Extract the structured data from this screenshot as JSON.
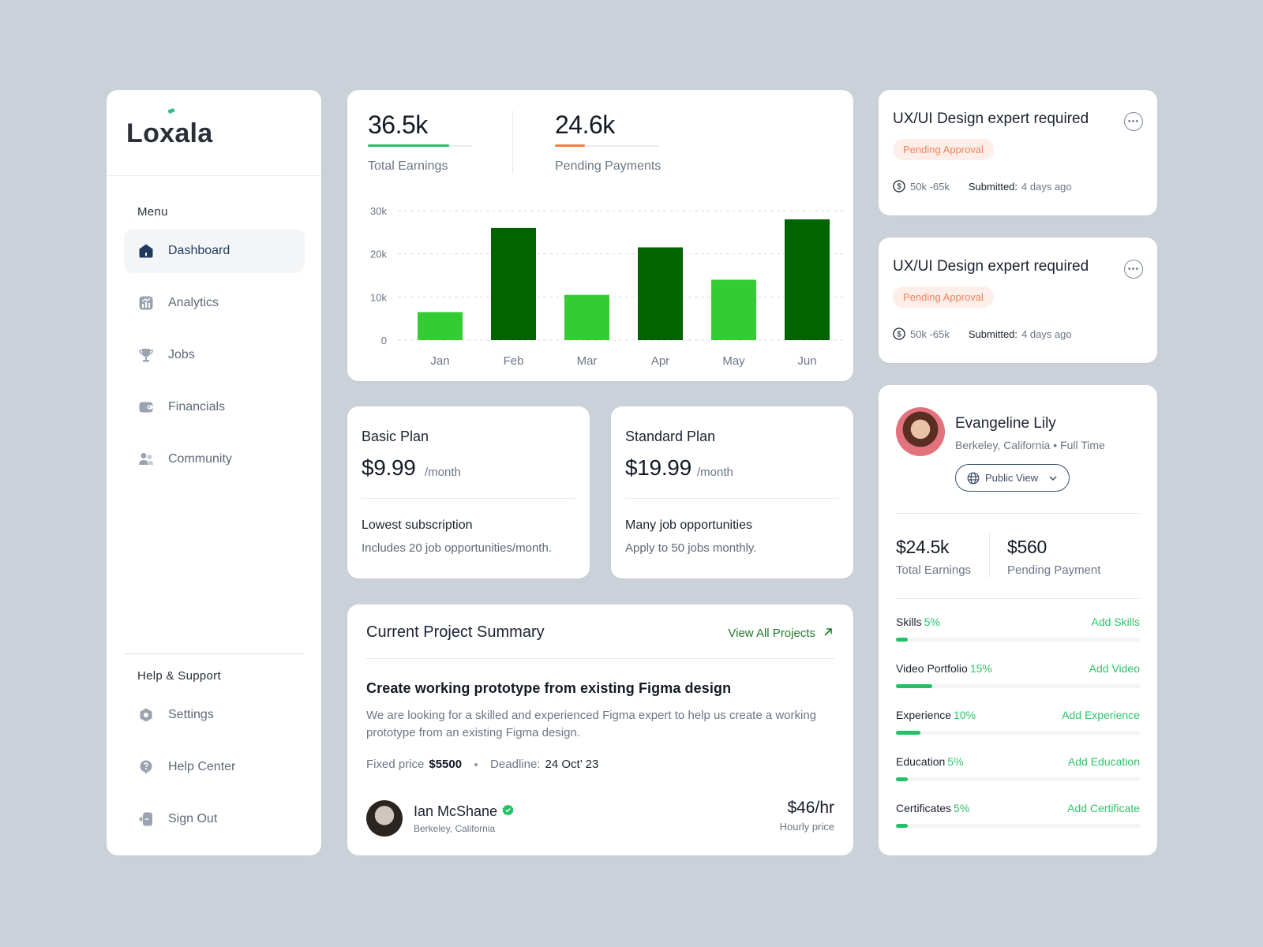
{
  "sidebar": {
    "logo": "Loxala",
    "menu_label": "Menu",
    "items": [
      {
        "label": "Dashboard",
        "icon": "home-icon",
        "active": true
      },
      {
        "label": "Analytics",
        "icon": "analytics-icon"
      },
      {
        "label": "Jobs",
        "icon": "trophy-icon"
      },
      {
        "label": "Financials",
        "icon": "wallet-icon"
      },
      {
        "label": "Community",
        "icon": "users-icon"
      }
    ],
    "support_label": "Help & Support",
    "support_items": [
      {
        "label": "Settings",
        "icon": "settings-icon"
      },
      {
        "label": "Help Center",
        "icon": "help-icon"
      },
      {
        "label": "Sign Out",
        "icon": "sign-out-icon"
      }
    ]
  },
  "stats": {
    "total_earnings": {
      "value": "36.5k",
      "label": "Total Earnings",
      "progress": 0.78,
      "color": "#22c067"
    },
    "pending_payments": {
      "value": "24.6k",
      "label": "Pending Payments",
      "progress": 0.29,
      "color": "#f07c3e"
    }
  },
  "chart_data": {
    "type": "bar",
    "categories": [
      "Jan",
      "Feb",
      "Mar",
      "Apr",
      "May",
      "Jun"
    ],
    "values": [
      6500,
      26000,
      10500,
      21500,
      14000,
      28000
    ],
    "colors": [
      "#33cc33",
      "#006400",
      "#33cc33",
      "#006400",
      "#33cc33",
      "#006400"
    ],
    "ylim": [
      0,
      30000
    ],
    "yticks": [
      "0",
      "10k",
      "20k",
      "30k"
    ],
    "grid": true
  },
  "plans": [
    {
      "name": "Basic Plan",
      "price": "$9.99",
      "period": "/month",
      "title": "Lowest subscription",
      "desc": "Includes 20 job opportunities/month."
    },
    {
      "name": "Standard Plan",
      "price": "$19.99",
      "period": "/month",
      "title": "Many job opportunities",
      "desc": "Apply to 50 jobs monthly."
    }
  ],
  "project": {
    "heading": "Current Project Summary",
    "view_all": "View All Projects",
    "title": "Create working prototype from existing Figma design",
    "description": "We are looking for a skilled and experienced Figma expert to help us create a working prototype from an existing Figma design.",
    "price_label": "Fixed price",
    "price": "$5500",
    "deadline_label": "Deadline:",
    "deadline": "24 Oct’ 23",
    "client": {
      "name": "Ian McShane",
      "location": "Berkeley, California"
    },
    "rate": "$46/hr",
    "rate_label": "Hourly price"
  },
  "jobs": [
    {
      "title": "UX/UI Design expert required",
      "status": "Pending Approval",
      "budget": "50k -65k",
      "submitted_label": "Submitted:",
      "submitted": "4 days ago"
    },
    {
      "title": "UX/UI Design expert required",
      "status": "Pending Approval",
      "budget": "50k -65k",
      "submitted_label": "Submitted:",
      "submitted": "4 days ago"
    }
  ],
  "profile": {
    "name": "Evangeline Lily",
    "location": "Berkeley, California • Full Time",
    "view_mode": "Public View",
    "total_earnings": "$24.5k",
    "total_earnings_label": "Total Earnings",
    "pending_payment": "$560",
    "pending_payment_label": "Pending Payment",
    "skills": [
      {
        "name": "Skills",
        "pct": "5%",
        "progress": 0.05,
        "action": "Add Skills"
      },
      {
        "name": "Video Portfolio",
        "pct": "15%",
        "progress": 0.15,
        "action": "Add Video"
      },
      {
        "name": "Experience",
        "pct": "10%",
        "progress": 0.1,
        "action": "Add Experience"
      },
      {
        "name": "Education",
        "pct": "5%",
        "progress": 0.05,
        "action": "Add Education"
      },
      {
        "name": "Certificates",
        "pct": "5%",
        "progress": 0.05,
        "action": "Add Certificate"
      }
    ]
  }
}
